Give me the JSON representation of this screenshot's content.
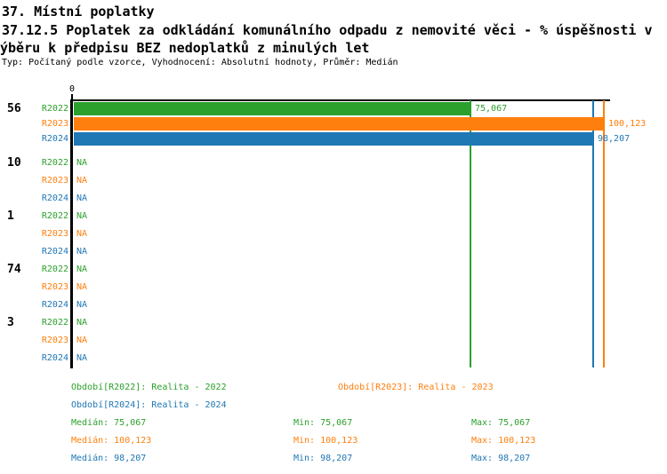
{
  "header": {
    "line1": "37. Místní poplatky",
    "line2": "37.12.5 Poplatek za odkládání komunálního odpadu z nemovité věci - % úspěšnosti v",
    "line3": "ýběru k předpisu BEZ nedoplatků z minulých let",
    "meta": "Typ: Počítaný podle vzorce, Vyhodnocení: Absolutní hodnoty, Průměr: Medián"
  },
  "colors": {
    "green": "#2ca02c",
    "orange": "#ff7f0e",
    "blue": "#1f77b4",
    "axis": "#000000"
  },
  "chart_data": {
    "type": "bar",
    "orientation": "horizontal",
    "title": "",
    "xlabel": "",
    "ylabel": "",
    "xlim": [
      0,
      101.2
    ],
    "axis_zero_label": "0",
    "grid": false,
    "series": [
      {
        "id": "R2022",
        "name": "Realita - 2022",
        "color_key": "green"
      },
      {
        "id": "R2023",
        "name": "Realita - 2023",
        "color_key": "orange"
      },
      {
        "id": "R2024",
        "name": "Realita - 2024",
        "color_key": "blue"
      }
    ],
    "groups": [
      {
        "label": "56",
        "rows": [
          {
            "series": "R2022",
            "value": 75.067,
            "display": "75,067"
          },
          {
            "series": "R2023",
            "value": 100.123,
            "display": "100,123"
          },
          {
            "series": "R2024",
            "value": 98.207,
            "display": "98,207"
          }
        ]
      },
      {
        "label": "10",
        "rows": [
          {
            "series": "R2022",
            "value": null,
            "display": "NA"
          },
          {
            "series": "R2023",
            "value": null,
            "display": "NA"
          },
          {
            "series": "R2024",
            "value": null,
            "display": "NA"
          }
        ]
      },
      {
        "label": "1",
        "rows": [
          {
            "series": "R2022",
            "value": null,
            "display": "NA"
          },
          {
            "series": "R2023",
            "value": null,
            "display": "NA"
          },
          {
            "series": "R2024",
            "value": null,
            "display": "NA"
          }
        ]
      },
      {
        "label": "74",
        "rows": [
          {
            "series": "R2022",
            "value": null,
            "display": "NA"
          },
          {
            "series": "R2023",
            "value": null,
            "display": "NA"
          },
          {
            "series": "R2024",
            "value": null,
            "display": "NA"
          }
        ]
      },
      {
        "label": "3",
        "rows": [
          {
            "series": "R2022",
            "value": null,
            "display": "NA"
          },
          {
            "series": "R2023",
            "value": null,
            "display": "NA"
          },
          {
            "series": "R2024",
            "value": null,
            "display": "NA"
          }
        ]
      }
    ],
    "markers": [
      {
        "color_key": "green",
        "value": 75.067
      },
      {
        "color_key": "blue",
        "value": 98.207
      },
      {
        "color_key": "orange",
        "value": 100.123
      }
    ]
  },
  "footer": {
    "legend": [
      {
        "text": "Období[R2022]: Realita - 2022",
        "color_key": "green"
      },
      {
        "text": "Období[R2023]: Realita - 2023",
        "color_key": "orange"
      },
      {
        "text": "Období[R2024]: Realita - 2024",
        "color_key": "blue"
      }
    ],
    "stats": [
      {
        "median": "Medián: 75,067",
        "min": "Min: 75,067",
        "max": "Max: 75,067",
        "color_key": "green"
      },
      {
        "median": "Medián: 100,123",
        "min": "Min: 100,123",
        "max": "Max: 100,123",
        "color_key": "orange"
      },
      {
        "median": "Medián: 98,207",
        "min": "Min: 98,207",
        "max": "Max: 98,207",
        "color_key": "blue"
      }
    ]
  }
}
